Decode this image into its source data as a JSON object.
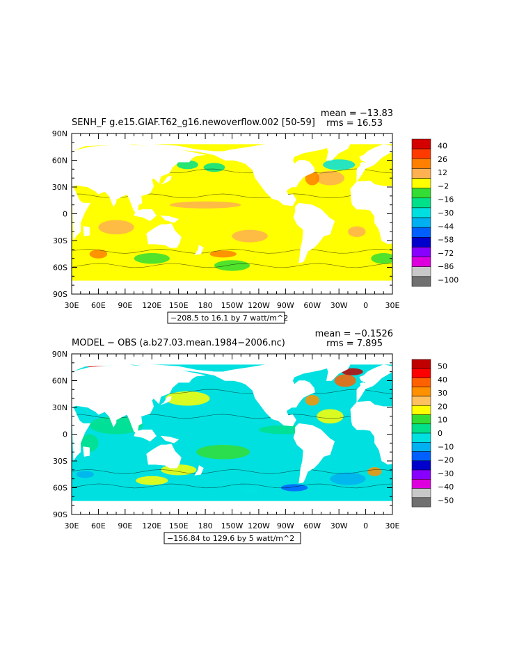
{
  "chart_data": [
    {
      "type": "heatmap",
      "title": "SENH_F  g.e15.GIAF.T62_g16.newoverflow.002 [50-59]",
      "stats": {
        "mean": "mean = −13.83",
        "rms": "rms = 16.53"
      },
      "range_note": "−208.5 to 16.1 by 7 watt/m^2",
      "x_ticks": [
        "30E",
        "60E",
        "90E",
        "120E",
        "150E",
        "180",
        "150W",
        "120W",
        "90W",
        "60W",
        "30W",
        "0",
        "30E"
      ],
      "y_ticks": [
        "90N",
        "60N",
        "30N",
        "0",
        "30S",
        "60S",
        "90S"
      ],
      "colorbar": {
        "labels": [
          "40",
          "26",
          "12",
          "−2",
          "−16",
          "−30",
          "−44",
          "−58",
          "−72",
          "−86",
          "−100"
        ],
        "colors": [
          "#d40000",
          "#ff3a00",
          "#ff8000",
          "#ffb050",
          "#ffff00",
          "#33dd33",
          "#00e08a",
          "#00e0e0",
          "#00b0f0",
          "#0060ff",
          "#0000cc",
          "#8800ff",
          "#dd00dd",
          "#c8c8c8",
          "#707070"
        ]
      },
      "dominant_color": "#ffff00"
    },
    {
      "type": "heatmap",
      "title": "MODEL − OBS (a.b27.03.mean.1984−2006.nc)",
      "stats": {
        "mean": "mean = −0.1526",
        "rms": "rms = 7.895"
      },
      "range_note": "−156.84 to 129.6 by 5 watt/m^2",
      "x_ticks": [
        "30E",
        "60E",
        "90E",
        "120E",
        "150E",
        "180",
        "150W",
        "120W",
        "90W",
        "60W",
        "30W",
        "0",
        "30E"
      ],
      "y_ticks": [
        "90N",
        "60N",
        "30N",
        "0",
        "30S",
        "60S",
        "90S"
      ],
      "colorbar": {
        "labels": [
          "50",
          "40",
          "30",
          "20",
          "10",
          "0",
          "−10",
          "−20",
          "−30",
          "−40",
          "−50"
        ],
        "colors": [
          "#c00000",
          "#ff0000",
          "#ff6000",
          "#ff9000",
          "#ffc060",
          "#ffff00",
          "#33dd33",
          "#00e08a",
          "#00e0e0",
          "#00b0f0",
          "#0060ff",
          "#0000cc",
          "#8800ff",
          "#dd00dd",
          "#c8c8c8",
          "#707070"
        ]
      },
      "dominant_color": "#00e0e0"
    }
  ]
}
